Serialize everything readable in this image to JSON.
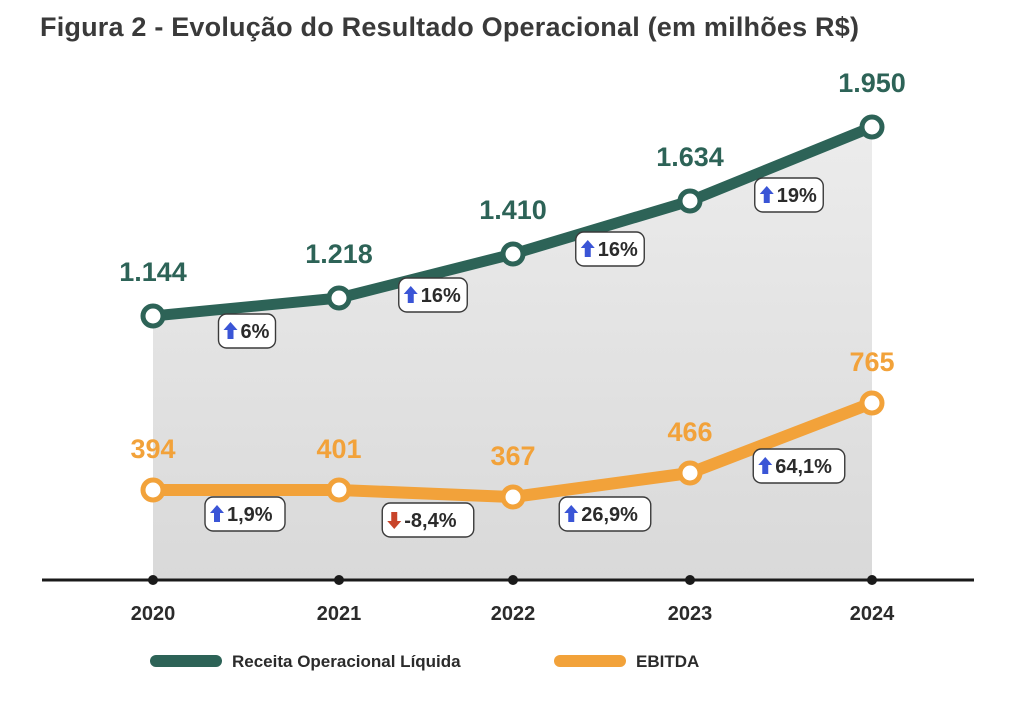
{
  "title": "Figura 2 - Evolução do Resultado Operacional (em milhões R$)",
  "colors": {
    "receita": "#2d6357",
    "ebitda": "#f2a23a",
    "up_arrow": "#3a55d6",
    "down_arrow": "#c8442a",
    "area_top": "#ececec",
    "area_bottom": "#d9d9d9",
    "axis": "#1a1a1a"
  },
  "chart_data": {
    "type": "line",
    "categories": [
      "2020",
      "2021",
      "2022",
      "2023",
      "2024"
    ],
    "series": [
      {
        "name": "Receita Operacional Líquida",
        "values": [
          1144,
          1218,
          1410,
          1634,
          1950
        ],
        "value_labels": [
          "1.144",
          "1.218",
          "1.410",
          "1.634",
          "1.950"
        ],
        "changes": [
          {
            "text": "6%",
            "direction": "up"
          },
          {
            "text": "16%",
            "direction": "up"
          },
          {
            "text": "16%",
            "direction": "up"
          },
          {
            "text": "19%",
            "direction": "up"
          }
        ]
      },
      {
        "name": "EBITDA",
        "values": [
          394,
          401,
          367,
          466,
          765
        ],
        "value_labels": [
          "394",
          "401",
          "367",
          "466",
          "765"
        ],
        "changes": [
          {
            "text": "1,9%",
            "direction": "up"
          },
          {
            "text": "-8,4%",
            "direction": "down"
          },
          {
            "text": "26,9%",
            "direction": "up"
          },
          {
            "text": "64,1%",
            "direction": "up"
          }
        ]
      }
    ],
    "legend_position": "bottom",
    "grid": false
  }
}
